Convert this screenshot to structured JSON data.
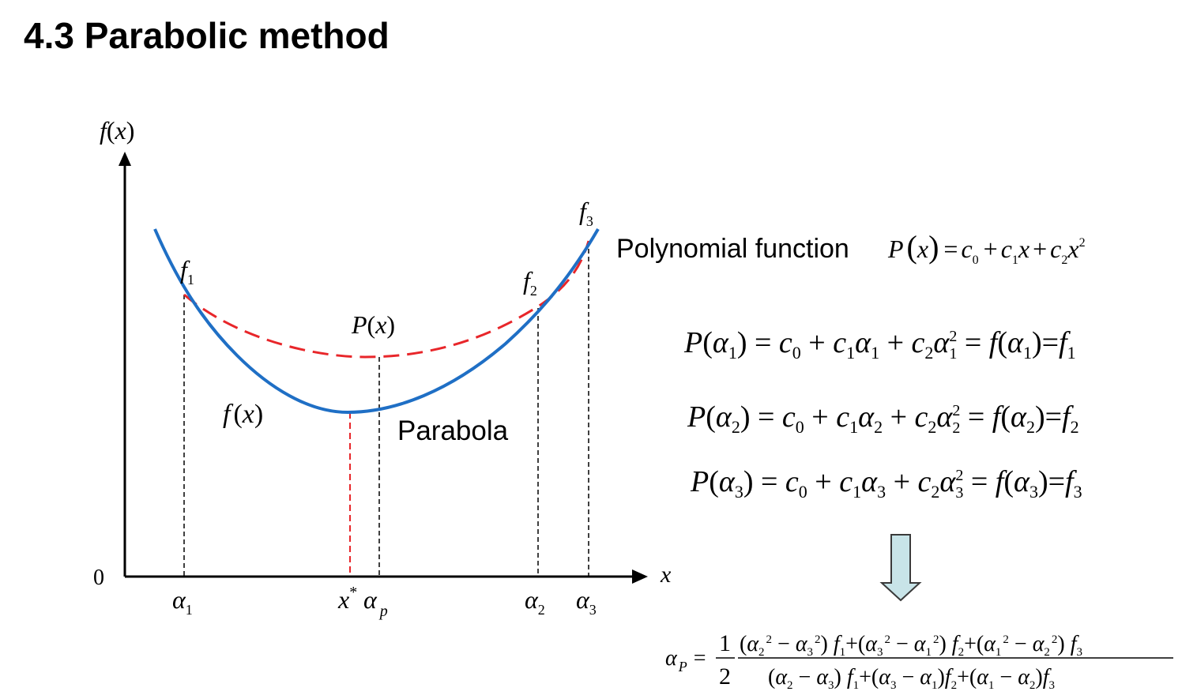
{
  "title": "4.3 Parabolic method",
  "labels": {
    "polynomial_function": "Polynomial function",
    "parabola": "Parabola"
  },
  "graph": {
    "y_axis_label": "f(x)",
    "x_axis_label": "x",
    "origin_label": "0",
    "curve_f_label": "f(x)",
    "curve_p_label": "P(x)",
    "point_labels": [
      "f1",
      "f2",
      "f3"
    ],
    "x_tick_labels": [
      "α1",
      "x*",
      "αp",
      "α2",
      "α3"
    ]
  },
  "equations": {
    "polynomial": "P(x) = c0 + c1x + c2x^2",
    "system": [
      "P(α1) = c0 + c1α1 + c2α1^2 = f(α1) = f1",
      "P(α2) = c0 + c1α2 + c2α2^2 = f(α2) = f2",
      "P(α3) = c0 + c1α3 + c2α3^2 = f(α3) = f3"
    ],
    "result": "αp = 1/2 · [(α2^2 − α3^2) f1 + (α3^2 − α1^2) f2 + (α1^2 − α2^2) f3] / [(α2 − α3) f1 + (α3 − α1) f2 + (α1 − α2) f3]"
  },
  "colors": {
    "f_curve": "#1f6fc5",
    "p_curve": "#e8262a",
    "arrow_fill": "#c8e4e8",
    "axis": "#000000"
  }
}
